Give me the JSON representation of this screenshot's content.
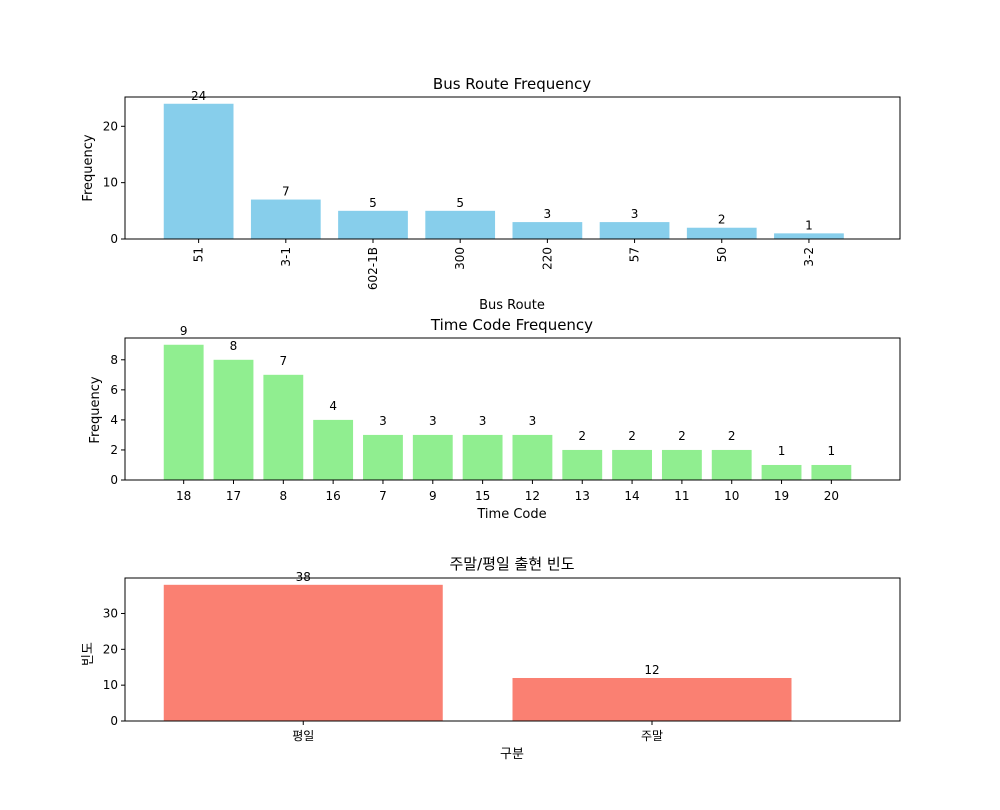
{
  "chart_data": [
    {
      "type": "bar",
      "title": "Bus Route Frequency",
      "xlabel": "Bus Route",
      "ylabel": "Frequency",
      "categories": [
        "51",
        "3-1",
        "602-1B",
        "300",
        "220",
        "57",
        "50",
        "3-2"
      ],
      "values": [
        24,
        7,
        5,
        5,
        3,
        3,
        2,
        1
      ],
      "ylim": [
        0,
        25.2
      ],
      "yticks": [
        0,
        10,
        20
      ],
      "bar_color": "#87CEEB",
      "xtick_rotation": 90
    },
    {
      "type": "bar",
      "title": "Time Code Frequency",
      "xlabel": "Time Code",
      "ylabel": "Frequency",
      "categories": [
        "18",
        "17",
        "8",
        "16",
        "7",
        "9",
        "15",
        "12",
        "13",
        "14",
        "11",
        "10",
        "19",
        "20"
      ],
      "values": [
        9,
        8,
        7,
        4,
        3,
        3,
        3,
        3,
        2,
        2,
        2,
        2,
        1,
        1
      ],
      "ylim": [
        0,
        9.45
      ],
      "yticks": [
        0,
        2,
        4,
        6,
        8
      ],
      "bar_color": "#90EE90",
      "xtick_rotation": 0
    },
    {
      "type": "bar",
      "title": "주말/평일 출현 빈도",
      "xlabel": "구분",
      "ylabel": "빈도",
      "categories": [
        "평일",
        "주말"
      ],
      "values": [
        38,
        12
      ],
      "ylim": [
        0,
        39.9
      ],
      "yticks": [
        0,
        10,
        20,
        30
      ],
      "bar_color": "#FA8072",
      "xtick_rotation": 0
    }
  ]
}
